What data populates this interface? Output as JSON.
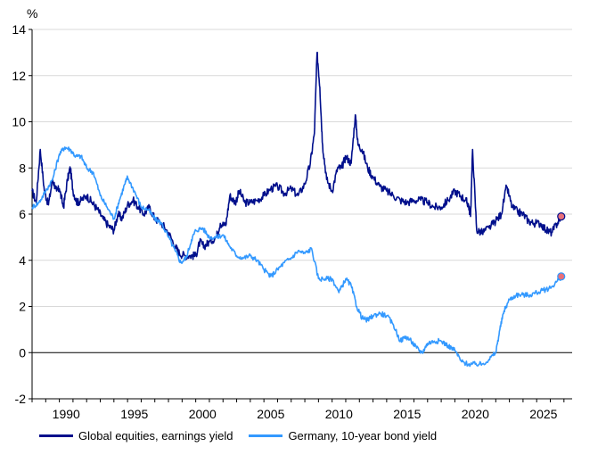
{
  "chart_data": {
    "type": "line",
    "title": "",
    "ylabel": "%",
    "xlabel": "",
    "xlim": [
      1988,
      2027.6
    ],
    "ylim": [
      -2,
      14
    ],
    "yticks": [
      -2,
      0,
      2,
      4,
      6,
      8,
      10,
      12,
      14
    ],
    "xticks": [
      1990,
      1995,
      2000,
      2005,
      2010,
      2015,
      2020,
      2025
    ],
    "grid": true,
    "legend": "bottom",
    "series": [
      {
        "name": "Global equities, earnings yield",
        "color": "#000f8c",
        "x": [
          1988.0,
          1988.3,
          1988.6,
          1988.9,
          1989.2,
          1989.5,
          1989.8,
          1990.0,
          1990.3,
          1990.6,
          1990.8,
          1991.0,
          1991.3,
          1991.6,
          1992.0,
          1992.4,
          1992.8,
          1993.2,
          1993.6,
          1994.0,
          1994.3,
          1994.6,
          1995.0,
          1995.4,
          1995.8,
          1996.2,
          1996.6,
          1997.0,
          1997.5,
          1998.0,
          1998.5,
          1998.8,
          1999.2,
          1999.6,
          2000.0,
          2000.3,
          2000.6,
          2001.0,
          2001.5,
          2001.8,
          2002.2,
          2002.5,
          2002.9,
          2003.2,
          2003.6,
          2004.0,
          2004.5,
          2005.0,
          2005.5,
          2006.0,
          2006.5,
          2007.0,
          2007.5,
          2008.0,
          2008.4,
          2008.7,
          2008.9,
          2009.1,
          2009.3,
          2009.6,
          2010.0,
          2010.4,
          2010.7,
          2011.0,
          2011.4,
          2011.7,
          2011.9,
          2012.2,
          2012.6,
          2013.0,
          2013.5,
          2014.0,
          2014.5,
          2015.0,
          2015.5,
          2016.0,
          2016.5,
          2017.0,
          2017.5,
          2018.0,
          2018.5,
          2019.0,
          2019.4,
          2019.8,
          2020.0,
          2020.15,
          2020.3,
          2020.6,
          2021.0,
          2021.5,
          2022.0,
          2022.4,
          2022.8,
          2023.2,
          2023.6,
          2024.0,
          2024.4,
          2024.8,
          2025.3,
          2025.7,
          2026.1,
          2026.5,
          2026.8
        ],
        "y": [
          7.0,
          6.5,
          8.8,
          7.0,
          6.4,
          7.5,
          7.0,
          7.1,
          6.3,
          7.5,
          8.0,
          7.0,
          6.5,
          6.6,
          6.8,
          6.5,
          6.2,
          5.8,
          5.5,
          5.3,
          6.0,
          5.8,
          6.4,
          6.6,
          6.3,
          6.0,
          6.3,
          5.8,
          5.6,
          5.2,
          4.6,
          4.3,
          4.2,
          4.2,
          4.2,
          4.8,
          4.6,
          4.8,
          5.0,
          5.6,
          5.5,
          6.8,
          6.5,
          7.0,
          6.5,
          6.5,
          6.6,
          6.8,
          7.1,
          7.2,
          6.9,
          7.1,
          6.8,
          7.3,
          8.2,
          9.5,
          13.0,
          11.5,
          9.0,
          7.5,
          7.0,
          8.0,
          8.0,
          8.5,
          8.2,
          10.3,
          9.0,
          8.8,
          8.0,
          7.6,
          7.2,
          7.0,
          6.8,
          6.6,
          6.5,
          6.6,
          6.6,
          6.5,
          6.3,
          6.3,
          6.6,
          7.0,
          6.8,
          6.6,
          6.4,
          5.9,
          8.8,
          5.3,
          5.2,
          5.4,
          5.7,
          6.0,
          7.2,
          6.3,
          6.1,
          6.0,
          5.7,
          5.6,
          5.6,
          5.3,
          5.2,
          5.6,
          5.9
        ]
      },
      {
        "name": "Germany, 10-year bond yield",
        "color": "#3399ff",
        "x": [
          1988.0,
          1988.5,
          1989.0,
          1989.5,
          1990.0,
          1990.4,
          1990.8,
          1991.2,
          1991.6,
          1992.0,
          1992.5,
          1993.0,
          1993.5,
          1994.0,
          1994.4,
          1994.8,
          1995.0,
          1995.5,
          1996.0,
          1996.5,
          1997.0,
          1997.5,
          1998.0,
          1998.5,
          1998.9,
          1999.3,
          1999.7,
          2000.0,
          2000.5,
          2001.0,
          2001.5,
          2002.0,
          2002.5,
          2003.0,
          2003.5,
          2004.0,
          2004.5,
          2005.0,
          2005.5,
          2006.0,
          2006.5,
          2007.0,
          2007.5,
          2008.0,
          2008.5,
          2009.0,
          2009.5,
          2010.0,
          2010.5,
          2011.0,
          2011.4,
          2011.8,
          2012.2,
          2012.6,
          2013.0,
          2013.5,
          2014.0,
          2014.5,
          2015.0,
          2015.4,
          2015.8,
          2016.2,
          2016.6,
          2017.0,
          2017.5,
          2018.0,
          2018.5,
          2019.0,
          2019.5,
          2020.0,
          2020.5,
          2021.0,
          2021.5,
          2022.0,
          2022.3,
          2022.6,
          2023.0,
          2023.5,
          2024.0,
          2024.5,
          2025.0,
          2025.5,
          2026.0,
          2026.5,
          2026.8
        ],
        "y": [
          6.3,
          6.5,
          7.0,
          7.5,
          8.6,
          8.9,
          8.8,
          8.5,
          8.5,
          8.0,
          7.8,
          6.8,
          6.3,
          5.8,
          6.6,
          7.3,
          7.6,
          7.0,
          6.3,
          6.2,
          5.8,
          5.6,
          5.0,
          4.4,
          3.9,
          4.1,
          4.9,
          5.3,
          5.4,
          5.0,
          5.0,
          5.1,
          4.6,
          4.2,
          4.1,
          4.2,
          4.0,
          3.6,
          3.3,
          3.6,
          3.9,
          4.1,
          4.4,
          4.3,
          4.5,
          3.2,
          3.2,
          3.2,
          2.6,
          3.2,
          2.9,
          2.0,
          1.5,
          1.4,
          1.6,
          1.7,
          1.6,
          1.2,
          0.5,
          0.7,
          0.5,
          0.2,
          0.0,
          0.4,
          0.5,
          0.5,
          0.3,
          0.1,
          -0.4,
          -0.5,
          -0.5,
          -0.5,
          -0.3,
          0.0,
          1.0,
          1.8,
          2.3,
          2.5,
          2.5,
          2.5,
          2.6,
          2.7,
          2.8,
          3.1,
          3.3
        ]
      }
    ]
  }
}
